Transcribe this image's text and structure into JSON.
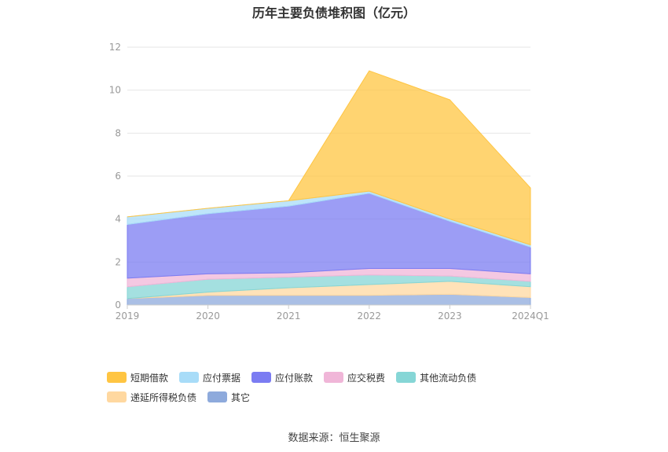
{
  "title": "历年主要负债堆积图（亿元）",
  "source": "数据来源：恒生聚源",
  "chart_data": {
    "type": "area",
    "stacked": true,
    "title": "历年主要负债堆积图（亿元）",
    "categories": [
      "2019",
      "2020",
      "2021",
      "2022",
      "2023",
      "2024Q1"
    ],
    "ylim": [
      0,
      12
    ],
    "yticks": [
      "0",
      "2",
      "4",
      "6",
      "8",
      "10",
      "12"
    ],
    "grid": true,
    "legend_position": "bottom",
    "series": [
      {
        "name": "其它",
        "color": "#8eaadc",
        "values": [
          0.3,
          0.45,
          0.45,
          0.45,
          0.5,
          0.35
        ]
      },
      {
        "name": "递延所得税负债",
        "color": "#ffd8a0",
        "values": [
          0.0,
          0.15,
          0.35,
          0.5,
          0.6,
          0.5
        ]
      },
      {
        "name": "其他流动负债",
        "color": "#86d6d6",
        "values": [
          0.55,
          0.6,
          0.5,
          0.45,
          0.25,
          0.25
        ]
      },
      {
        "name": "应交税费",
        "color": "#f0b6d8",
        "values": [
          0.4,
          0.25,
          0.2,
          0.3,
          0.35,
          0.35
        ]
      },
      {
        "name": "应付账款",
        "color": "#7b7cf2",
        "values": [
          2.5,
          2.8,
          3.1,
          3.5,
          2.2,
          1.25
        ]
      },
      {
        "name": "应付票据",
        "color": "#a8dcf8",
        "values": [
          0.35,
          0.25,
          0.25,
          0.1,
          0.1,
          0.1
        ]
      },
      {
        "name": "短期借款",
        "color": "#ffc542",
        "values": [
          0.0,
          0.0,
          0.0,
          5.6,
          5.55,
          2.65
        ]
      }
    ],
    "legend_order": [
      "短期借款",
      "应付票据",
      "应付账款",
      "应交税费",
      "其他流动负债",
      "递延所得税负债",
      "其它"
    ]
  }
}
